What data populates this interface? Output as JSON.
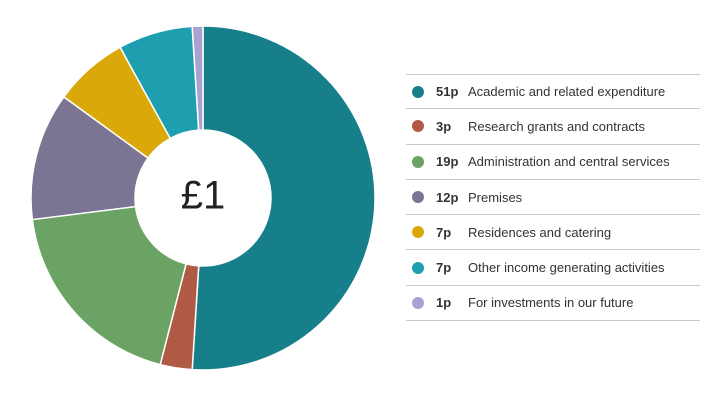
{
  "chart_data": {
    "type": "pie",
    "center_label": "£1",
    "legend_position": "right",
    "slices": [
      {
        "label": "Academic and related expenditure",
        "value": 51,
        "display": "51p",
        "color": "#167f8a"
      },
      {
        "label": "Research grants and contracts",
        "value": 3,
        "display": "3p",
        "color": "#b05a45"
      },
      {
        "label": "Administration and central services",
        "value": 19,
        "display": "19p",
        "color": "#6aa364"
      },
      {
        "label": "Premises",
        "value": 12,
        "display": "12p",
        "color": "#7b7493"
      },
      {
        "label": "Residences and catering",
        "value": 7,
        "display": "7p",
        "color": "#dba80a"
      },
      {
        "label": "Other income generating activities",
        "value": 7,
        "display": "7p",
        "color": "#1e9fb0"
      },
      {
        "label": "For investments in our future",
        "value": 1,
        "display": "1p",
        "color": "#a9a1d1"
      }
    ]
  }
}
